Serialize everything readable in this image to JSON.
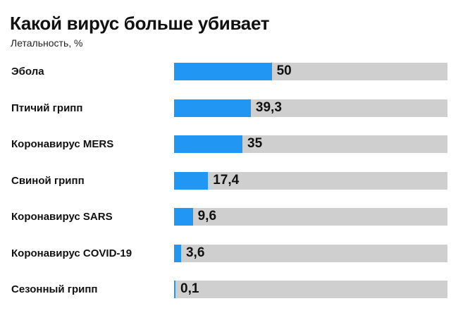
{
  "chart_data": {
    "type": "bar",
    "orientation": "horizontal",
    "title": "Какой вирус больше убивает",
    "subtitle": "Летальность, %",
    "categories": [
      "Эбола",
      "Птичий грипп",
      "Коронавирус MERS",
      "Свиной грипп",
      "Коронавирус SARS",
      "Коронавирус COVID-19",
      "Сезонный грипп"
    ],
    "values": [
      50,
      39.3,
      35,
      17.4,
      9.6,
      3.6,
      0.1
    ],
    "value_labels": [
      "50",
      "39,3",
      "35",
      "17,4",
      "9,6",
      "3,6",
      "0,1"
    ],
    "xlim": [
      0,
      140
    ],
    "grid": false,
    "legend": "none",
    "colors": {
      "bar": "#2196f3",
      "track": "#cfcfcf"
    }
  }
}
